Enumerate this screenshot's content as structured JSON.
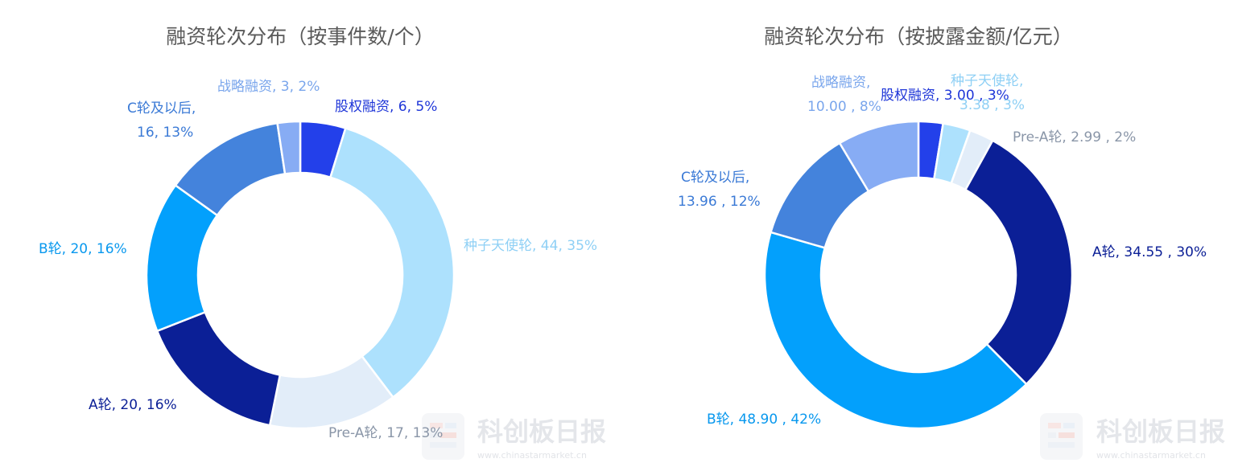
{
  "chart_data": [
    {
      "type": "pie",
      "variant": "donut",
      "title": "融资轮次分布（按事件数/个）",
      "slices": [
        {
          "name": "股权融资",
          "value": 6,
          "percent": "5%",
          "color": "#2340ea",
          "label_lines": [
            "股权融资, 6, 5%"
          ]
        },
        {
          "name": "种子天使轮",
          "value": 44,
          "percent": "35%",
          "color": "#ade1fd",
          "label_lines": [
            "种子天使轮, 44, 35%"
          ]
        },
        {
          "name": "Pre-A轮",
          "value": 17,
          "percent": "13%",
          "color": "#e2edf9",
          "label_lines": [
            "Pre-A轮, 17, 13%"
          ]
        },
        {
          "name": "A轮",
          "value": 20,
          "percent": "16%",
          "color": "#0b1f96",
          "label_lines": [
            "A轮, 20, 16%"
          ]
        },
        {
          "name": "B轮",
          "value": 20,
          "percent": "16%",
          "color": "#03a0fc",
          "label_lines": [
            "B轮, 20, 16%"
          ]
        },
        {
          "name": "C轮及以后",
          "value": 16,
          "percent": "13%",
          "color": "#4483dc",
          "label_lines": [
            "C轮及以后,",
            "16, 13%"
          ]
        },
        {
          "name": "战略融资",
          "value": 3,
          "percent": "2%",
          "color": "#87acf4",
          "label_lines": [
            "战略融资, 3, 2%"
          ]
        }
      ]
    },
    {
      "type": "pie",
      "variant": "donut",
      "title": "融资轮次分布（按披露金额/亿元）",
      "slices": [
        {
          "name": "股权融资",
          "value": 3.0,
          "percent": "3%",
          "color": "#2340ea",
          "label_lines": [
            "股权融资, 3.00 , 3%"
          ]
        },
        {
          "name": "种子天使轮",
          "value": 3.38,
          "percent": "3%",
          "color": "#ade1fd",
          "label_lines": [
            "种子天使轮,",
            "3.38 , 3%"
          ]
        },
        {
          "name": "Pre-A轮",
          "value": 2.99,
          "percent": "2%",
          "color": "#e2edf9",
          "label_lines": [
            "Pre-A轮, 2.99 , 2%"
          ]
        },
        {
          "name": "A轮",
          "value": 34.55,
          "percent": "30%",
          "color": "#0b1f96",
          "label_lines": [
            "A轮, 34.55 , 30%"
          ]
        },
        {
          "name": "B轮",
          "value": 48.9,
          "percent": "42%",
          "color": "#03a0fc",
          "label_lines": [
            "B轮, 48.90 , 42%"
          ]
        },
        {
          "name": "C轮及以后",
          "value": 13.96,
          "percent": "12%",
          "color": "#4483dc",
          "label_lines": [
            "C轮及以后,",
            "13.96 , 12%"
          ]
        },
        {
          "name": "战略融资",
          "value": 10.0,
          "percent": "8%",
          "color": "#87acf4",
          "label_lines": [
            "战略融资,",
            "10.00 , 8%"
          ]
        }
      ]
    }
  ],
  "label_colors": [
    "#1f36d8",
    "#8fd0f5",
    "#8a96a8",
    "#0b1f96",
    "#0898ee",
    "#3b7ad6",
    "#7aa6ec"
  ],
  "watermark": {
    "brand": "科创板日报",
    "url": "www.chinastarmarket.cn"
  }
}
